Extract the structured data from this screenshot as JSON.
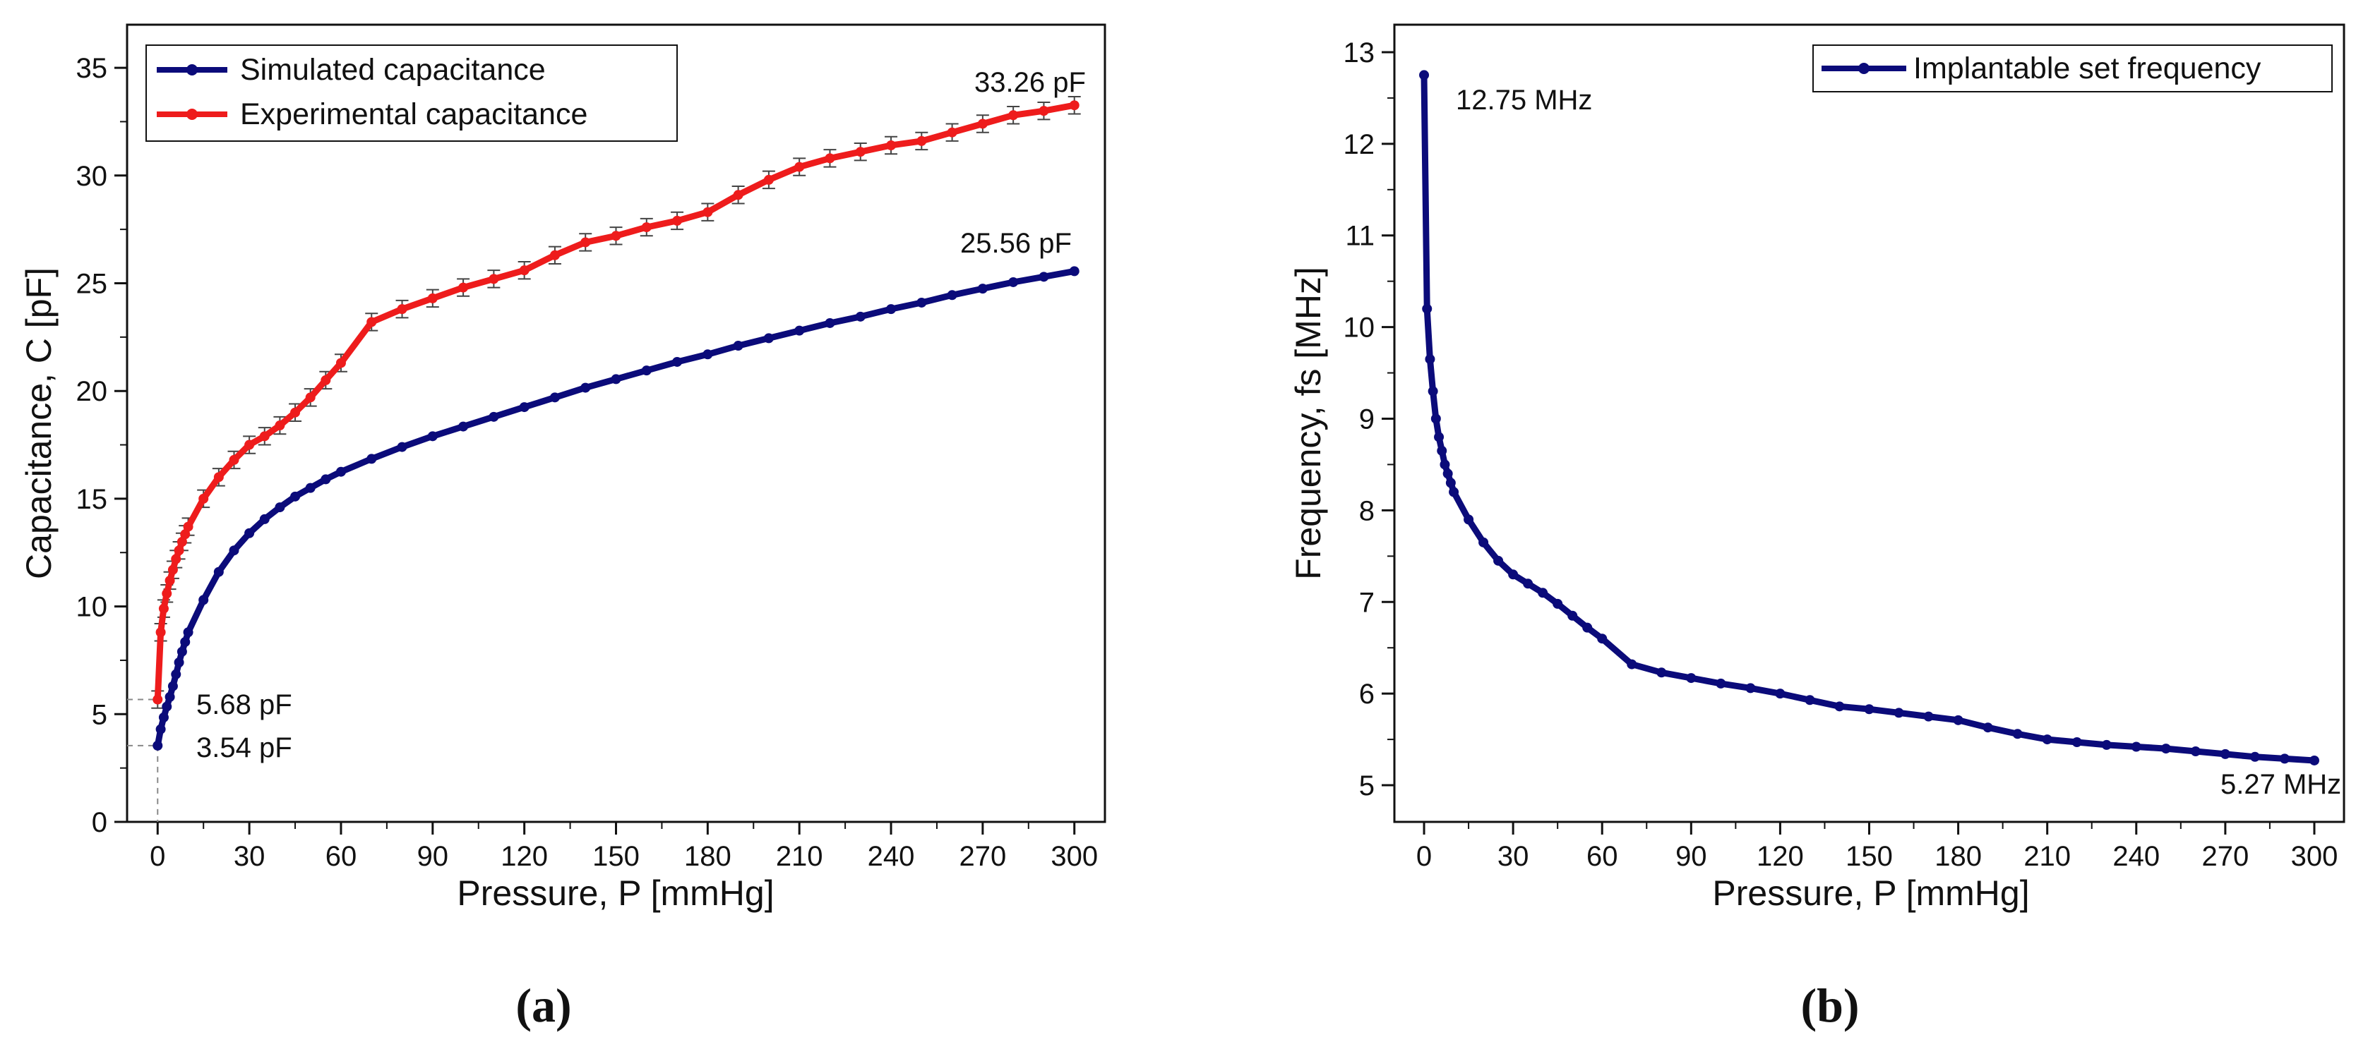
{
  "chart_data": [
    {
      "type": "line",
      "panel_label": "(a)",
      "xlabel": "Pressure, P [mmHg]",
      "ylabel": "Capacitance, C [pF]",
      "xlim": [
        -10,
        310
      ],
      "ylim": [
        0,
        37
      ],
      "xticks": [
        0,
        30,
        60,
        90,
        120,
        150,
        180,
        210,
        240,
        270,
        300
      ],
      "yticks": [
        0,
        5,
        10,
        15,
        20,
        25,
        30,
        35
      ],
      "legend_position": "top-left",
      "series": [
        {
          "name": "Simulated capacitance",
          "color": "#0b0b7a",
          "x": [
            0,
            1,
            2,
            3,
            4,
            5,
            6,
            7,
            8,
            9,
            10,
            15,
            20,
            25,
            30,
            35,
            40,
            45,
            50,
            55,
            60,
            70,
            80,
            90,
            100,
            110,
            120,
            130,
            140,
            150,
            160,
            170,
            180,
            190,
            200,
            210,
            220,
            230,
            240,
            250,
            260,
            270,
            280,
            290,
            300
          ],
          "y": [
            3.54,
            4.3,
            4.85,
            5.35,
            5.8,
            6.3,
            6.85,
            7.4,
            7.9,
            8.35,
            8.8,
            10.3,
            11.6,
            12.6,
            13.4,
            14.05,
            14.6,
            15.1,
            15.5,
            15.9,
            16.25,
            16.85,
            17.4,
            17.9,
            18.35,
            18.8,
            19.25,
            19.7,
            20.15,
            20.55,
            20.95,
            21.35,
            21.7,
            22.1,
            22.45,
            22.8,
            23.15,
            23.45,
            23.8,
            24.1,
            24.45,
            24.75,
            25.05,
            25.3,
            25.56
          ]
        },
        {
          "name": "Experimental capacitance",
          "color": "#ee1c1c",
          "x": [
            0,
            1,
            2,
            3,
            4,
            5,
            6,
            7,
            8,
            9,
            10,
            15,
            20,
            25,
            30,
            35,
            40,
            45,
            50,
            55,
            60,
            70,
            80,
            90,
            100,
            110,
            120,
            130,
            140,
            150,
            160,
            170,
            180,
            190,
            200,
            210,
            220,
            230,
            240,
            250,
            260,
            270,
            280,
            290,
            300
          ],
          "y": [
            5.68,
            8.8,
            9.9,
            10.6,
            11.2,
            11.7,
            12.2,
            12.6,
            13.0,
            13.35,
            13.7,
            15.0,
            16.0,
            16.8,
            17.5,
            17.9,
            18.4,
            19.0,
            19.7,
            20.5,
            21.3,
            23.2,
            23.8,
            24.3,
            24.8,
            25.2,
            25.6,
            26.3,
            26.9,
            27.2,
            27.6,
            27.9,
            28.3,
            29.1,
            29.8,
            30.4,
            30.8,
            31.1,
            31.4,
            31.6,
            32.0,
            32.4,
            32.8,
            33.0,
            33.26
          ]
        }
      ],
      "annotations": [
        "33.26 pF",
        "25.56 pF",
        "5.68 pF",
        "3.54 pF"
      ]
    },
    {
      "type": "line",
      "panel_label": "(b)",
      "xlabel": "Pressure, P [mmHg]",
      "ylabel": "Frequency, fs [MHz]",
      "xlim": [
        -10,
        310
      ],
      "ylim": [
        4.6,
        13.3
      ],
      "xticks": [
        0,
        30,
        60,
        90,
        120,
        150,
        180,
        210,
        240,
        270,
        300
      ],
      "yticks": [
        5,
        6,
        7,
        8,
        9,
        10,
        11,
        12,
        13
      ],
      "legend_position": "top-right",
      "series": [
        {
          "name": "Implantable set frequency",
          "color": "#0b0b7a",
          "x": [
            0,
            1,
            2,
            3,
            4,
            5,
            6,
            7,
            8,
            9,
            10,
            15,
            20,
            25,
            30,
            35,
            40,
            45,
            50,
            55,
            60,
            70,
            80,
            90,
            100,
            110,
            120,
            130,
            140,
            150,
            160,
            170,
            180,
            190,
            200,
            210,
            220,
            230,
            240,
            250,
            260,
            270,
            280,
            290,
            300
          ],
          "y": [
            12.75,
            10.2,
            9.65,
            9.3,
            9.0,
            8.8,
            8.65,
            8.5,
            8.4,
            8.3,
            8.2,
            7.9,
            7.65,
            7.45,
            7.3,
            7.2,
            7.1,
            6.98,
            6.85,
            6.72,
            6.6,
            6.32,
            6.23,
            6.17,
            6.11,
            6.06,
            6.0,
            5.93,
            5.86,
            5.83,
            5.79,
            5.75,
            5.71,
            5.63,
            5.56,
            5.5,
            5.47,
            5.44,
            5.42,
            5.4,
            5.37,
            5.34,
            5.31,
            5.29,
            5.27
          ]
        }
      ],
      "annotations": [
        "12.75 MHz",
        "5.27 MHz"
      ]
    }
  ]
}
